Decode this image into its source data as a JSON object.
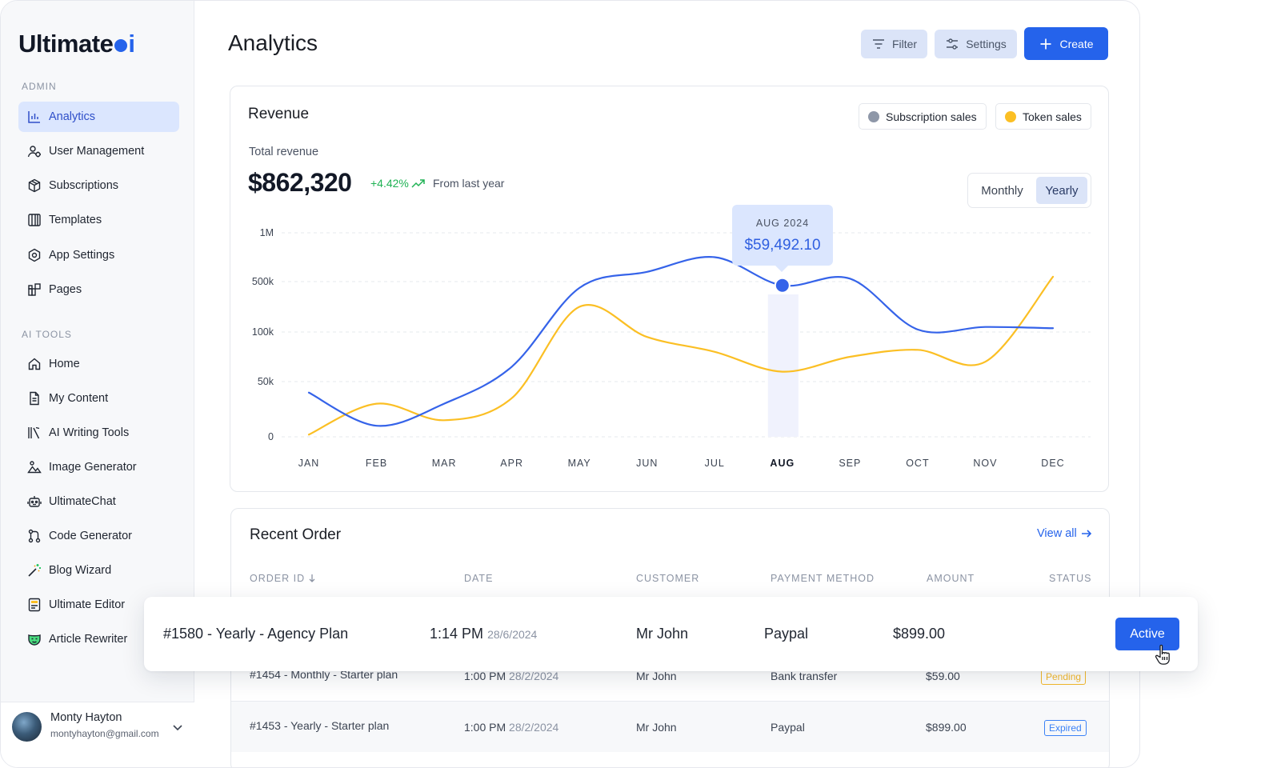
{
  "brand": {
    "name_part1": "Ultimate",
    "name_part2": "i"
  },
  "sidebar": {
    "admin_label": "ADMIN",
    "admin_items": [
      {
        "label": "Analytics",
        "icon": "bar-chart-icon",
        "active": true
      },
      {
        "label": "User Management",
        "icon": "users-icon"
      },
      {
        "label": "Subscriptions",
        "icon": "box-icon"
      },
      {
        "label": "Templates",
        "icon": "templates-icon"
      },
      {
        "label": "App Settings",
        "icon": "settings-hex-icon"
      },
      {
        "label": "Pages",
        "icon": "pages-icon"
      }
    ],
    "tools_label": "AI TOOLS",
    "tool_items": [
      {
        "label": "Home",
        "icon": "home-icon"
      },
      {
        "label": "My Content",
        "icon": "document-icon"
      },
      {
        "label": "AI Writing Tools",
        "icon": "writing-icon"
      },
      {
        "label": "Image Generator",
        "icon": "image-icon"
      },
      {
        "label": "UltimateChat",
        "icon": "robot-icon"
      },
      {
        "label": "Code Generator",
        "icon": "git-icon"
      },
      {
        "label": "Blog Wizard",
        "icon": "magic-wand-icon"
      },
      {
        "label": "Ultimate Editor",
        "icon": "editor-icon"
      },
      {
        "label": "Article Rewriter",
        "icon": "mask-icon"
      }
    ],
    "user": {
      "name": "Monty Hayton",
      "email": "montyhayton@gmail.com"
    }
  },
  "header": {
    "title": "Analytics",
    "filter_label": "Filter",
    "settings_label": "Settings",
    "create_label": "Create"
  },
  "revenue": {
    "title": "Revenue",
    "legend": [
      {
        "label": "Subscription sales",
        "color": "#8e97a8"
      },
      {
        "label": "Token sales",
        "color": "#fbbf24"
      }
    ],
    "total_label": "Total revenue",
    "total_value": "$862,320",
    "change": "+4.42%",
    "from_label": "From last year",
    "toggle": {
      "monthly": "Monthly",
      "yearly": "Yearly",
      "selected": "Yearly"
    },
    "tooltip": {
      "date": "AUG 2024",
      "value": "$59,492.10"
    }
  },
  "chart_data": {
    "type": "line",
    "categories": [
      "JAN",
      "FEB",
      "MAR",
      "APR",
      "MAY",
      "JUN",
      "JUL",
      "AUG",
      "SEP",
      "OCT",
      "NOV",
      "DEC"
    ],
    "y_ticks": [
      "1M",
      "500k",
      "100k",
      "50k",
      "0"
    ],
    "highlight_category": "AUG",
    "series": [
      {
        "color": "#3563e9",
        "values": [
          40000,
          10000,
          30000,
          65000,
          450000,
          600000,
          750000,
          470000,
          530000,
          120000,
          140000,
          130000
        ]
      },
      {
        "color": "#fbbf24",
        "values": [
          2000,
          30000,
          15000,
          35000,
          300000,
          95000,
          80000,
          60000,
          75000,
          82000,
          70000,
          550000
        ]
      }
    ],
    "grid": true,
    "legend": "top-right"
  },
  "orders": {
    "title": "Recent Order",
    "view_all": "View all",
    "columns": [
      "ORDER ID",
      "DATE",
      "CUSTOMER",
      "PAYMENT METHOD",
      "AMOUNT",
      "STATUS"
    ],
    "highlight": {
      "id": "#1580 - Yearly - Agency Plan",
      "time": "1:14 PM",
      "date": "28/6/2024",
      "customer": "Mr John",
      "payment": "Paypal",
      "amount": "$899.00",
      "status": "Active"
    },
    "rows": [
      {
        "id": "#1454 - Monthly - Starter plan",
        "time": "1:00 PM",
        "date": "28/2/2024",
        "customer": "Mr John",
        "payment": "Bank transfer",
        "amount": "$59.00",
        "status": "Pending",
        "status_color": "#f5b92b"
      },
      {
        "id": "#1453 - Yearly - Starter plan",
        "time": "1:00 PM",
        "date": "28/2/2024",
        "customer": "Mr John",
        "payment": "Paypal",
        "amount": "$899.00",
        "status": "Expired",
        "status_color": "#3b82f6"
      }
    ]
  }
}
